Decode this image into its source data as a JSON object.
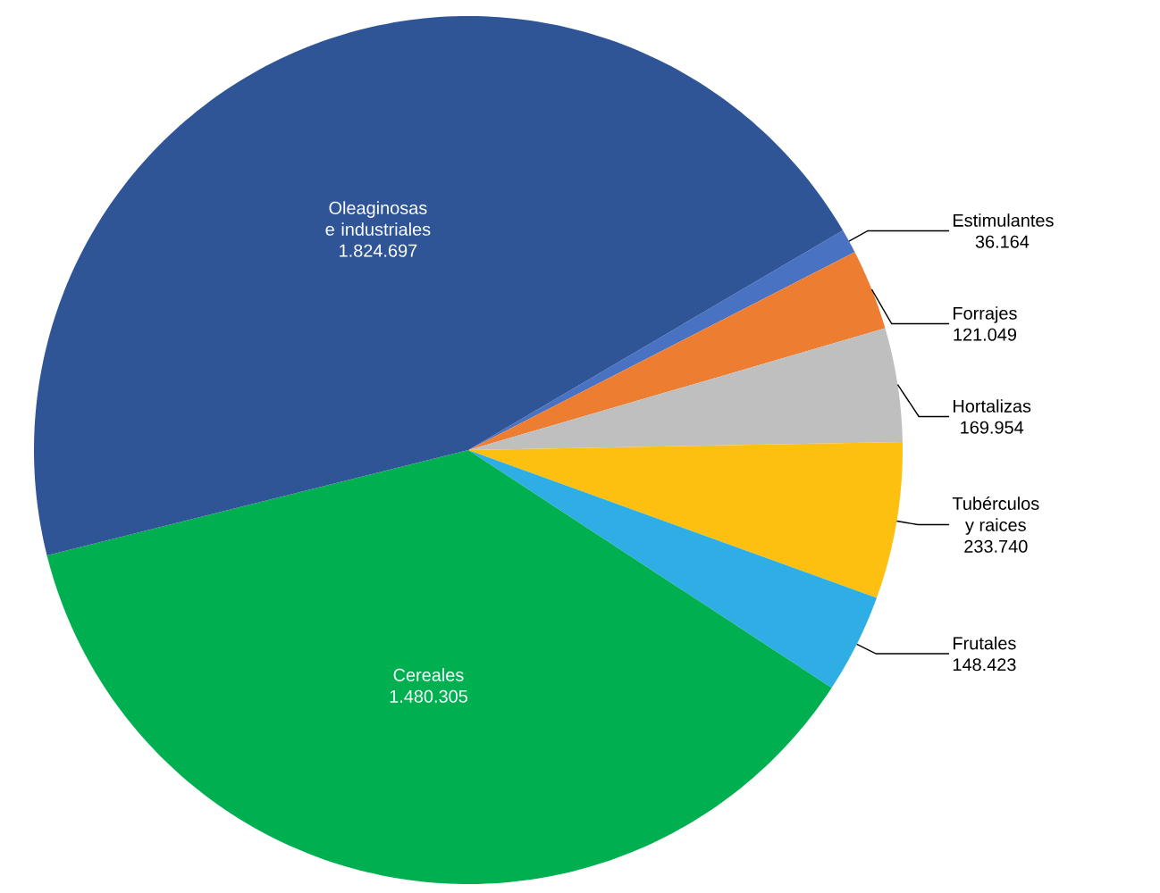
{
  "chart_data": {
    "type": "pie",
    "categories": [
      "Estimulantes",
      "Forrajes",
      "Hortalizas",
      "Tubérculos y raices",
      "Frutales",
      "Cereales",
      "Oleaginosas e industriales"
    ],
    "values": [
      36164,
      121049,
      169954,
      233740,
      148423,
      1480305,
      1824697
    ],
    "value_labels": [
      "36.164",
      "121.049",
      "169.954",
      "233.740",
      "148.423",
      "1.480.305",
      "1.824.697"
    ],
    "colors": [
      "#4a72c2",
      "#ed7d31",
      "#bfbfbf",
      "#fdc010",
      "#2eaee5",
      "#00b050",
      "#2f5597"
    ]
  }
}
